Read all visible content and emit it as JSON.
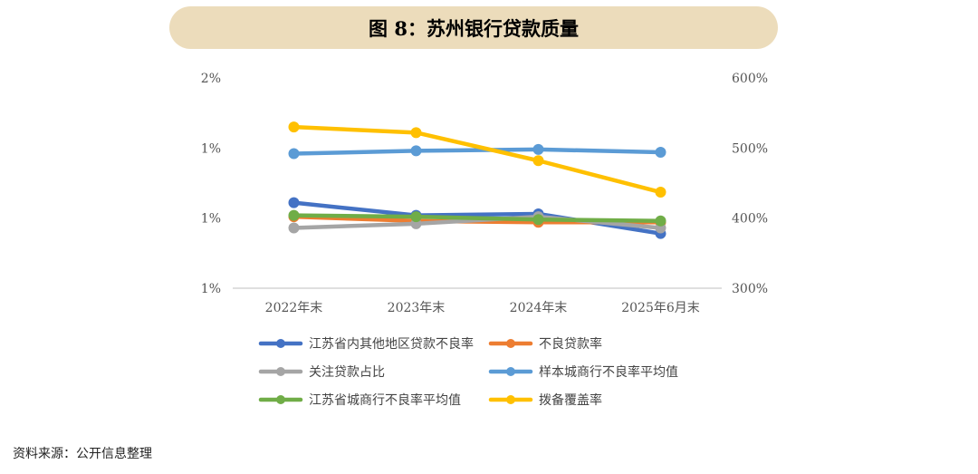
{
  "title": "图 8：苏州银行贷款质量",
  "source": "资料来源：公开信息整理",
  "chart_data": {
    "type": "line",
    "categories": [
      "2022年末",
      "2023年末",
      "2024年末",
      "2025年6月末"
    ],
    "y_left": {
      "ticks": [
        "1%",
        "1%",
        "1%",
        "2%"
      ],
      "lim": [
        0.6,
        2.1
      ]
    },
    "y_right": {
      "ticks": [
        "300%",
        "400%",
        "500%",
        "600%"
      ],
      "lim": [
        300,
        600
      ]
    },
    "grid": false,
    "legend_position": "bottom",
    "series": [
      {
        "name": "江苏省内其他地区贷款不良率",
        "axis": "left",
        "color": "#4472c4",
        "values": [
          1.21,
          1.12,
          1.13,
          0.99
        ]
      },
      {
        "name": "不良贷款率",
        "axis": "left",
        "color": "#ed7d31",
        "values": [
          1.11,
          1.08,
          1.07,
          1.07
        ]
      },
      {
        "name": "关注贷款占比",
        "axis": "left",
        "color": "#a5a5a5",
        "values": [
          1.03,
          1.06,
          1.11,
          1.03
        ]
      },
      {
        "name": "样本城商行不良率平均值",
        "axis": "left",
        "color": "#5b9bd5",
        "values": [
          1.56,
          1.58,
          1.59,
          1.57
        ]
      },
      {
        "name": "江苏省城商行不良率平均值",
        "axis": "left",
        "color": "#70ad47",
        "values": [
          1.12,
          1.11,
          1.09,
          1.08
        ]
      },
      {
        "name": "拨备覆盖率",
        "axis": "right",
        "color": "#ffc000",
        "values": [
          530,
          522,
          482,
          437
        ]
      }
    ]
  }
}
